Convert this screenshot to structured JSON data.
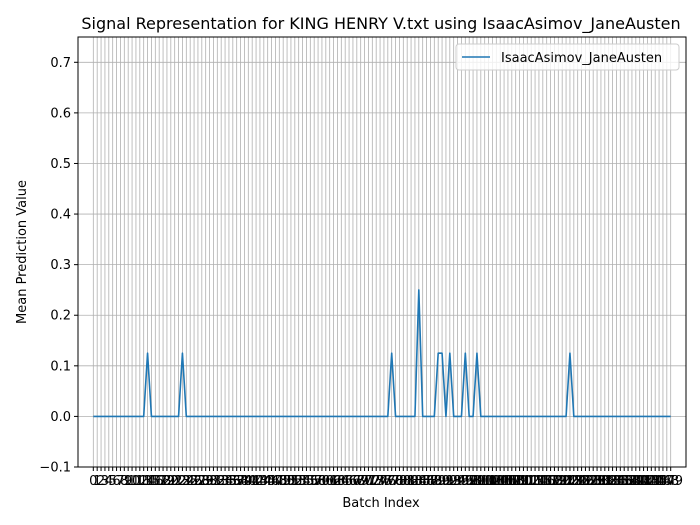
{
  "chart_data": {
    "type": "line",
    "title": "Signal Representation for KING HENRY V.txt using IsaacAsimov_JaneAusten",
    "xlabel": "Batch Index",
    "ylabel": "Mean Prediction Value",
    "xlim": [
      -3.95,
      152.95
    ],
    "ylim": [
      -0.1,
      0.75
    ],
    "yticks": [
      -0.1,
      0.0,
      0.1,
      0.2,
      0.3,
      0.4,
      0.5,
      0.6,
      0.7
    ],
    "ytick_labels": [
      "−0.1",
      "0.0",
      "0.1",
      "0.2",
      "0.3",
      "0.4",
      "0.5",
      "0.6",
      "0.7"
    ],
    "x_first": 0,
    "x_last": 149,
    "x_ticks_every": 1,
    "grid": true,
    "legend_position": "upper right",
    "series": [
      {
        "name": "IsaacAsimov_JaneAusten",
        "color": "#1f77b4",
        "points": [
          [
            0,
            0
          ],
          [
            13,
            0
          ],
          [
            14,
            0.125
          ],
          [
            15,
            0
          ],
          [
            22,
            0
          ],
          [
            23,
            0.125
          ],
          [
            24,
            0
          ],
          [
            76,
            0
          ],
          [
            77,
            0.125
          ],
          [
            78,
            0
          ],
          [
            83,
            0
          ],
          [
            84,
            0.25
          ],
          [
            85,
            0
          ],
          [
            88,
            0
          ],
          [
            89,
            0.125
          ],
          [
            90,
            0.125
          ],
          [
            91,
            0
          ],
          [
            92,
            0.125
          ],
          [
            93,
            0
          ],
          [
            95,
            0
          ],
          [
            96,
            0.125
          ],
          [
            97,
            0
          ],
          [
            98,
            0
          ],
          [
            99,
            0.125
          ],
          [
            100,
            0
          ],
          [
            122,
            0
          ],
          [
            123,
            0.125
          ],
          [
            124,
            0
          ],
          [
            149,
            0
          ]
        ]
      }
    ]
  }
}
